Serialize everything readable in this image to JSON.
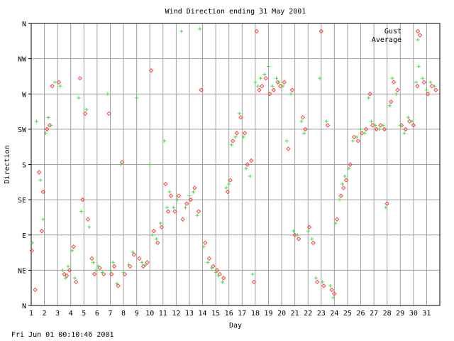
{
  "chart_data": {
    "type": "scatter",
    "title": "Wind Direction ending 31 May 2001",
    "xlabel": "Day",
    "ylabel": "Direction",
    "xlim": [
      1,
      32
    ],
    "ylim": [
      0,
      360
    ],
    "x_ticks": [
      "1",
      "2",
      "3",
      "4",
      "5",
      "6",
      "7",
      "8",
      "9",
      "10",
      "11",
      "12",
      "13",
      "14",
      "15",
      "16",
      "17",
      "18",
      "19",
      "20",
      "21",
      "22",
      "23",
      "24",
      "25",
      "26",
      "27",
      "28",
      "29",
      "30",
      "31"
    ],
    "y_ticks": [
      {
        "label": "N",
        "value": 0
      },
      {
        "label": "NE",
        "value": 45
      },
      {
        "label": "E",
        "value": 90
      },
      {
        "label": "SE",
        "value": 135
      },
      {
        "label": "S",
        "value": 180
      },
      {
        "label": "SW",
        "value": 225
      },
      {
        "label": "W",
        "value": 270
      },
      {
        "label": "NW",
        "value": 315
      },
      {
        "label": "N",
        "value": 360
      }
    ],
    "grid": true,
    "legend_position": "top-right",
    "series": [
      {
        "name": "Gust",
        "marker": "diamond",
        "color": "#ff4040",
        "points": [
          [
            1.05,
            70
          ],
          [
            1.3,
            20
          ],
          [
            1.6,
            170
          ],
          [
            1.8,
            95
          ],
          [
            1.9,
            145
          ],
          [
            2.2,
            225
          ],
          [
            2.4,
            230
          ],
          [
            2.6,
            280
          ],
          [
            3.1,
            285
          ],
          [
            3.5,
            40
          ],
          [
            3.7,
            38
          ],
          [
            3.9,
            45
          ],
          [
            4.2,
            75
          ],
          [
            4.4,
            30
          ],
          [
            4.7,
            290
          ],
          [
            4.9,
            135
          ],
          [
            5.1,
            245
          ],
          [
            5.3,
            110
          ],
          [
            5.6,
            60
          ],
          [
            5.8,
            40
          ],
          [
            6.2,
            48
          ],
          [
            6.5,
            40
          ],
          [
            6.9,
            245
          ],
          [
            7.1,
            40
          ],
          [
            7.3,
            50
          ],
          [
            7.6,
            25
          ],
          [
            7.9,
            183
          ],
          [
            8.1,
            40
          ],
          [
            8.5,
            50
          ],
          [
            8.8,
            65
          ],
          [
            9.2,
            60
          ],
          [
            9.5,
            50
          ],
          [
            9.8,
            55
          ],
          [
            10.1,
            300
          ],
          [
            10.3,
            95
          ],
          [
            10.6,
            80
          ],
          [
            10.9,
            100
          ],
          [
            11.2,
            155
          ],
          [
            11.4,
            120
          ],
          [
            11.6,
            140
          ],
          [
            11.9,
            120
          ],
          [
            12.2,
            140
          ],
          [
            12.5,
            110
          ],
          [
            12.8,
            130
          ],
          [
            13.1,
            135
          ],
          [
            13.4,
            150
          ],
          [
            13.7,
            120
          ],
          [
            13.9,
            275
          ],
          [
            14.2,
            80
          ],
          [
            14.5,
            60
          ],
          [
            14.8,
            50
          ],
          [
            15.1,
            45
          ],
          [
            15.3,
            40
          ],
          [
            15.6,
            35
          ],
          [
            15.9,
            145
          ],
          [
            16.1,
            160
          ],
          [
            16.3,
            210
          ],
          [
            16.6,
            220
          ],
          [
            16.9,
            240
          ],
          [
            17.2,
            220
          ],
          [
            17.4,
            180
          ],
          [
            17.7,
            185
          ],
          [
            17.9,
            30
          ],
          [
            18.1,
            350
          ],
          [
            18.3,
            275
          ],
          [
            18.5,
            280
          ],
          [
            18.8,
            290
          ],
          [
            19.1,
            270
          ],
          [
            19.4,
            275
          ],
          [
            19.7,
            285
          ],
          [
            19.9,
            280
          ],
          [
            20.2,
            285
          ],
          [
            20.5,
            200
          ],
          [
            20.8,
            275
          ],
          [
            21.0,
            90
          ],
          [
            21.3,
            85
          ],
          [
            21.6,
            240
          ],
          [
            21.8,
            225
          ],
          [
            22.1,
            100
          ],
          [
            22.4,
            80
          ],
          [
            22.7,
            30
          ],
          [
            23.0,
            350
          ],
          [
            23.2,
            25
          ],
          [
            23.5,
            230
          ],
          [
            23.8,
            20
          ],
          [
            24.0,
            15
          ],
          [
            24.2,
            110
          ],
          [
            24.5,
            140
          ],
          [
            24.7,
            150
          ],
          [
            24.9,
            160
          ],
          [
            25.2,
            180
          ],
          [
            25.5,
            215
          ],
          [
            25.8,
            210
          ],
          [
            26.1,
            220
          ],
          [
            26.4,
            225
          ],
          [
            26.7,
            270
          ],
          [
            26.9,
            230
          ],
          [
            27.2,
            225
          ],
          [
            27.5,
            230
          ],
          [
            27.8,
            225
          ],
          [
            28.0,
            130
          ],
          [
            28.3,
            260
          ],
          [
            28.5,
            285
          ],
          [
            28.8,
            275
          ],
          [
            29.1,
            230
          ],
          [
            29.4,
            225
          ],
          [
            29.7,
            235
          ],
          [
            30.0,
            230
          ],
          [
            30.3,
            280
          ],
          [
            30.5,
            345
          ],
          [
            30.8,
            285
          ],
          [
            31.1,
            270
          ],
          [
            31.4,
            280
          ],
          [
            31.7,
            275
          ]
        ]
      },
      {
        "name": "Average",
        "marker": "plus",
        "color": "#40e040",
        "points": [
          [
            1.1,
            80
          ],
          [
            1.4,
            235
          ],
          [
            1.7,
            160
          ],
          [
            1.9,
            110
          ],
          [
            2.1,
            220
          ],
          [
            2.3,
            240
          ],
          [
            2.5,
            230
          ],
          [
            2.8,
            285
          ],
          [
            3.2,
            280
          ],
          [
            3.4,
            45
          ],
          [
            3.6,
            35
          ],
          [
            3.8,
            50
          ],
          [
            4.1,
            70
          ],
          [
            4.3,
            35
          ],
          [
            4.6,
            265
          ],
          [
            4.8,
            120
          ],
          [
            5.2,
            250
          ],
          [
            5.4,
            100
          ],
          [
            5.7,
            55
          ],
          [
            5.9,
            45
          ],
          [
            6.1,
            50
          ],
          [
            6.4,
            42
          ],
          [
            6.8,
            270
          ],
          [
            7.0,
            45
          ],
          [
            7.2,
            55
          ],
          [
            7.5,
            28
          ],
          [
            7.8,
            180
          ],
          [
            8.0,
            42
          ],
          [
            8.4,
            52
          ],
          [
            8.7,
            68
          ],
          [
            9.0,
            265
          ],
          [
            9.4,
            55
          ],
          [
            9.7,
            52
          ],
          [
            10.0,
            180
          ],
          [
            10.2,
            90
          ],
          [
            10.5,
            85
          ],
          [
            10.8,
            105
          ],
          [
            11.1,
            210
          ],
          [
            11.3,
            125
          ],
          [
            11.5,
            145
          ],
          [
            11.8,
            125
          ],
          [
            12.1,
            135
          ],
          [
            12.4,
            350
          ],
          [
            12.7,
            125
          ],
          [
            13.0,
            140
          ],
          [
            13.3,
            145
          ],
          [
            13.6,
            115
          ],
          [
            13.8,
            353
          ],
          [
            14.1,
            75
          ],
          [
            14.4,
            55
          ],
          [
            14.7,
            48
          ],
          [
            15.0,
            42
          ],
          [
            15.2,
            38
          ],
          [
            15.5,
            30
          ],
          [
            15.8,
            150
          ],
          [
            16.0,
            155
          ],
          [
            16.2,
            205
          ],
          [
            16.5,
            215
          ],
          [
            16.8,
            245
          ],
          [
            17.1,
            215
          ],
          [
            17.3,
            175
          ],
          [
            17.6,
            165
          ],
          [
            17.8,
            40
          ],
          [
            18.0,
            285
          ],
          [
            18.2,
            280
          ],
          [
            18.4,
            290
          ],
          [
            18.7,
            295
          ],
          [
            19.0,
            305
          ],
          [
            19.3,
            280
          ],
          [
            19.6,
            290
          ],
          [
            19.8,
            285
          ],
          [
            20.1,
            280
          ],
          [
            20.4,
            210
          ],
          [
            20.7,
            270
          ],
          [
            20.9,
            95
          ],
          [
            21.2,
            90
          ],
          [
            21.5,
            235
          ],
          [
            21.7,
            220
          ],
          [
            22.0,
            95
          ],
          [
            22.3,
            85
          ],
          [
            22.6,
            35
          ],
          [
            22.9,
            290
          ],
          [
            23.1,
            30
          ],
          [
            23.4,
            235
          ],
          [
            23.7,
            25
          ],
          [
            23.9,
            10
          ],
          [
            24.1,
            105
          ],
          [
            24.4,
            135
          ],
          [
            24.6,
            155
          ],
          [
            24.8,
            165
          ],
          [
            25.1,
            175
          ],
          [
            25.4,
            210
          ],
          [
            25.7,
            215
          ],
          [
            26.0,
            225
          ],
          [
            26.3,
            220
          ],
          [
            26.6,
            265
          ],
          [
            26.8,
            235
          ],
          [
            27.1,
            230
          ],
          [
            27.4,
            225
          ],
          [
            27.7,
            230
          ],
          [
            27.9,
            125
          ],
          [
            28.2,
            255
          ],
          [
            28.4,
            290
          ],
          [
            28.7,
            270
          ],
          [
            29.0,
            230
          ],
          [
            29.3,
            220
          ],
          [
            29.6,
            240
          ],
          [
            29.9,
            235
          ],
          [
            30.2,
            285
          ],
          [
            30.4,
            305
          ],
          [
            30.7,
            290
          ],
          [
            31.0,
            275
          ],
          [
            31.3,
            285
          ],
          [
            31.6,
            280
          ]
        ]
      }
    ]
  },
  "footer": {
    "timestamp": "Fri Jun 01 00:10:46 2001"
  }
}
